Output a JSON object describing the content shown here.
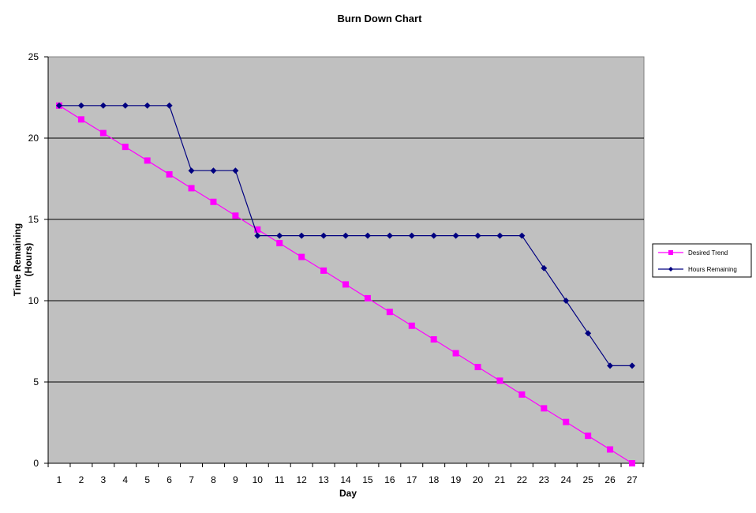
{
  "chart_data": {
    "type": "line",
    "title": "Burn Down Chart",
    "xlabel": "Day",
    "ylabel": "Time Remaining (Hours)",
    "ylabel_lines": [
      "Time Remaining",
      "(Hours)"
    ],
    "x": [
      1,
      2,
      3,
      4,
      5,
      6,
      7,
      8,
      9,
      10,
      11,
      12,
      13,
      14,
      15,
      16,
      17,
      18,
      19,
      20,
      21,
      22,
      23,
      24,
      25,
      26,
      27
    ],
    "ylim": [
      0,
      25
    ],
    "yticks": [
      0,
      5,
      10,
      15,
      20,
      25
    ],
    "grid": true,
    "legend_position": "right",
    "plot_background": "#c0c0c0",
    "series": [
      {
        "name": "Desired Trend",
        "color": "#ff00ff",
        "marker": "square",
        "values": [
          22,
          21.15,
          20.31,
          19.46,
          18.62,
          17.77,
          16.92,
          16.08,
          15.23,
          14.38,
          13.54,
          12.69,
          11.85,
          11.0,
          10.15,
          9.31,
          8.46,
          7.62,
          6.77,
          5.92,
          5.08,
          4.23,
          3.38,
          2.54,
          1.69,
          0.85,
          0
        ]
      },
      {
        "name": "Hours Remaining",
        "color": "#000080",
        "marker": "diamond",
        "values": [
          22,
          22,
          22,
          22,
          22,
          22,
          18,
          18,
          18,
          14,
          14,
          14,
          14,
          14,
          14,
          14,
          14,
          14,
          14,
          14,
          14,
          14,
          12,
          10,
          8,
          6,
          6
        ]
      }
    ]
  }
}
